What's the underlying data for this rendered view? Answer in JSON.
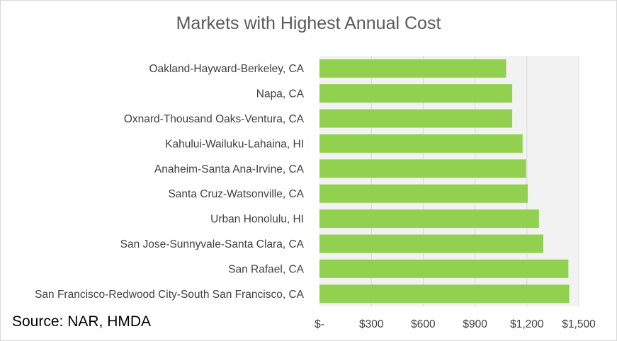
{
  "chart_data": {
    "type": "bar",
    "orientation": "horizontal",
    "title": "Markets with Highest Annual Cost",
    "categories": [
      "Oakland-Hayward-Berkeley, CA",
      "Napa, CA",
      "Oxnard-Thousand Oaks-Ventura, CA",
      "Kahului-Wailuku-Lahaina, HI",
      "Anaheim-Santa Ana-Irvine, CA",
      "Santa Cruz-Watsonville, CA",
      "Urban Honolulu, HI",
      "San Jose-Sunnyvale-Santa Clara, CA",
      "San Rafael, CA",
      "San Francisco-Redwood City-South San Francisco, CA"
    ],
    "values": [
      1080,
      1115,
      1115,
      1175,
      1195,
      1205,
      1270,
      1295,
      1440,
      1445
    ],
    "xlim": [
      0,
      1500
    ],
    "xticks": [
      {
        "value": 0,
        "label": "$-"
      },
      {
        "value": 300,
        "label": "$300"
      },
      {
        "value": 600,
        "label": "$600"
      },
      {
        "value": 900,
        "label": "$900"
      },
      {
        "value": 1200,
        "label": "$1,200"
      },
      {
        "value": 1500,
        "label": "$1,500"
      }
    ],
    "xlabel": "",
    "ylabel": "",
    "grid": true,
    "bar_color": "#92d050",
    "plot_background": "#f2f2f2",
    "grid_color": "#d9d9d9",
    "label_color": "#404040"
  },
  "source": "Source: NAR, HMDA"
}
